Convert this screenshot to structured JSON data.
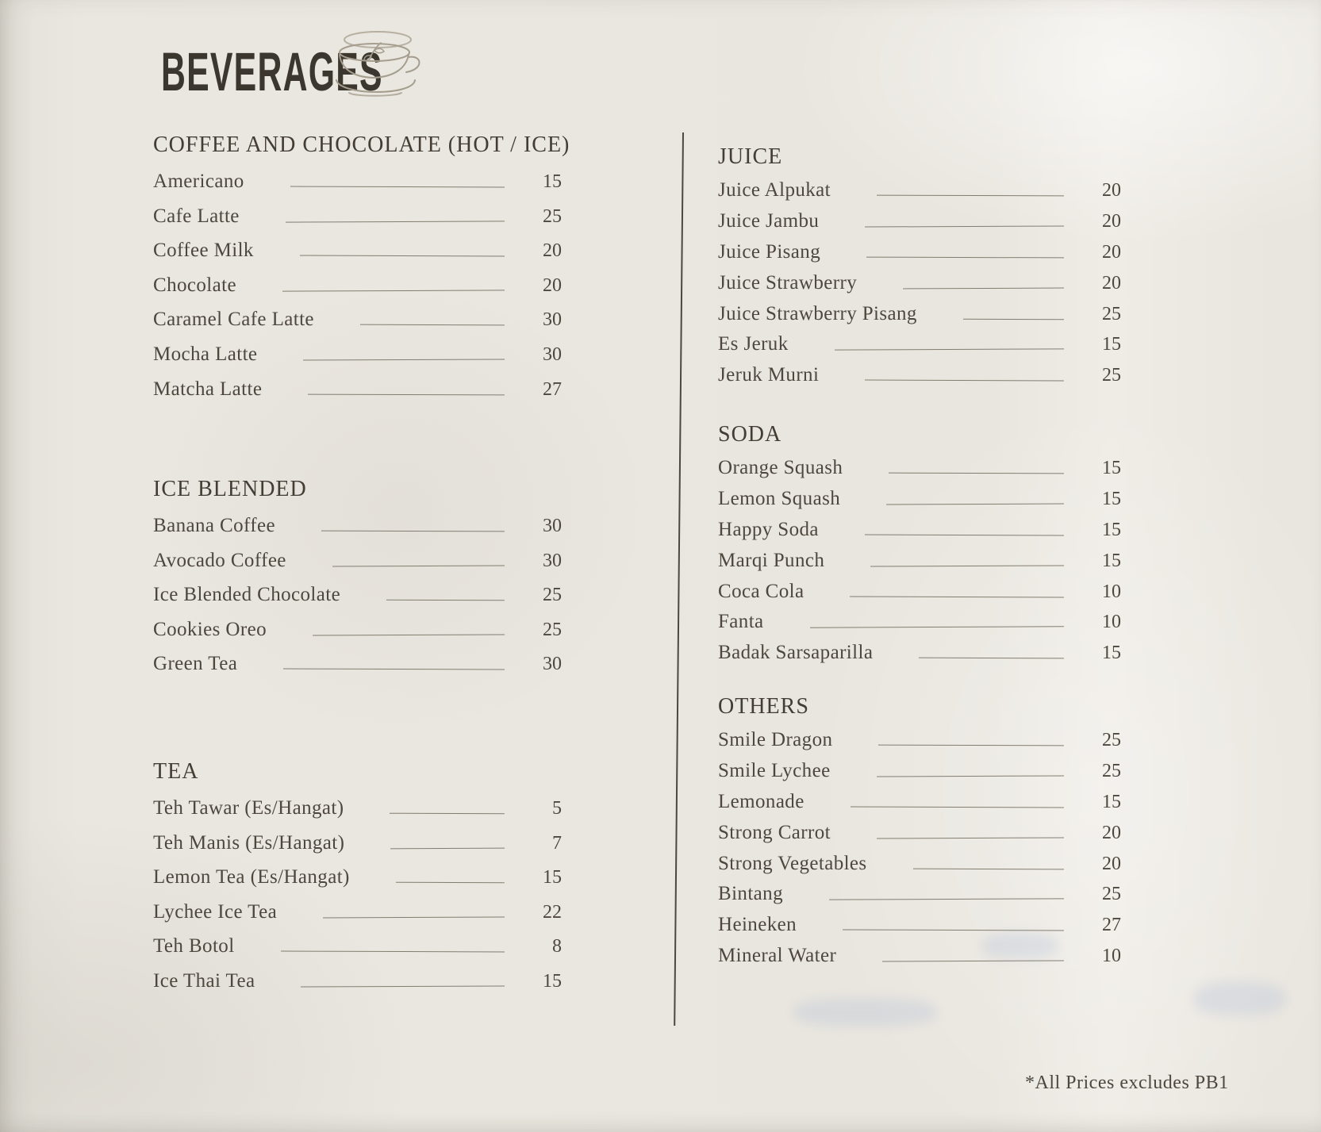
{
  "title": "BEVERAGES",
  "footnote": "*All Prices excludes PB1",
  "icon": "coffee-cup-icon",
  "colors": {
    "paper": "#e9e6df",
    "ink": "#4d473e",
    "heading_ink": "#433d34",
    "title_ink": "#3b362e",
    "leader_line": "#837d71",
    "divider": "#4c473f"
  },
  "columns": {
    "left": {
      "sections": [
        {
          "heading": "COFFEE AND CHOCOLATE (HOT / ICE)",
          "items": [
            {
              "name": "Americano",
              "price": "15"
            },
            {
              "name": "Cafe Latte",
              "price": "25"
            },
            {
              "name": "Coffee Milk",
              "price": "20"
            },
            {
              "name": "Chocolate",
              "price": "20"
            },
            {
              "name": "Caramel Cafe Latte",
              "price": "30"
            },
            {
              "name": "Mocha Latte",
              "price": "30"
            },
            {
              "name": "Matcha Latte",
              "price": "27"
            }
          ]
        },
        {
          "heading": "ICE BLENDED",
          "items": [
            {
              "name": "Banana Coffee",
              "price": "30"
            },
            {
              "name": "Avocado Coffee",
              "price": "30"
            },
            {
              "name": "Ice Blended Chocolate",
              "price": "25"
            },
            {
              "name": "Cookies Oreo",
              "price": "25"
            },
            {
              "name": "Green Tea",
              "price": "30"
            }
          ]
        },
        {
          "heading": "TEA",
          "items": [
            {
              "name": "Teh Tawar (Es/Hangat)",
              "price": "5"
            },
            {
              "name": "Teh Manis (Es/Hangat)",
              "price": "7"
            },
            {
              "name": "Lemon Tea (Es/Hangat)",
              "price": "15"
            },
            {
              "name": "Lychee Ice Tea",
              "price": "22"
            },
            {
              "name": "Teh Botol",
              "price": "8"
            },
            {
              "name": "Ice Thai Tea",
              "price": "15"
            }
          ]
        }
      ]
    },
    "right": {
      "sections": [
        {
          "heading": "JUICE",
          "items": [
            {
              "name": "Juice Alpukat",
              "price": "20"
            },
            {
              "name": "Juice Jambu",
              "price": "20"
            },
            {
              "name": "Juice Pisang",
              "price": "20"
            },
            {
              "name": "Juice Strawberry",
              "price": "20"
            },
            {
              "name": "Juice Strawberry Pisang",
              "price": "25"
            },
            {
              "name": "Es Jeruk",
              "price": "15"
            },
            {
              "name": "Jeruk Murni",
              "price": "25"
            }
          ]
        },
        {
          "heading": "SODA",
          "items": [
            {
              "name": "Orange Squash",
              "price": "15"
            },
            {
              "name": "Lemon Squash",
              "price": "15"
            },
            {
              "name": "Happy Soda",
              "price": "15"
            },
            {
              "name": "Marqi Punch",
              "price": "15"
            },
            {
              "name": "Coca Cola",
              "price": "10"
            },
            {
              "name": "Fanta",
              "price": "10"
            },
            {
              "name": "Badak Sarsaparilla",
              "price": "15"
            }
          ]
        },
        {
          "heading": "OTHERS",
          "items": [
            {
              "name": "Smile Dragon",
              "price": "25"
            },
            {
              "name": "Smile Lychee",
              "price": "25"
            },
            {
              "name": "Lemonade",
              "price": "15"
            },
            {
              "name": "Strong Carrot",
              "price": "20"
            },
            {
              "name": "Strong Vegetables",
              "price": "20"
            },
            {
              "name": "Bintang",
              "price": "25"
            },
            {
              "name": "Heineken",
              "price": "27"
            },
            {
              "name": "Mineral Water",
              "price": "10"
            }
          ]
        }
      ]
    }
  }
}
